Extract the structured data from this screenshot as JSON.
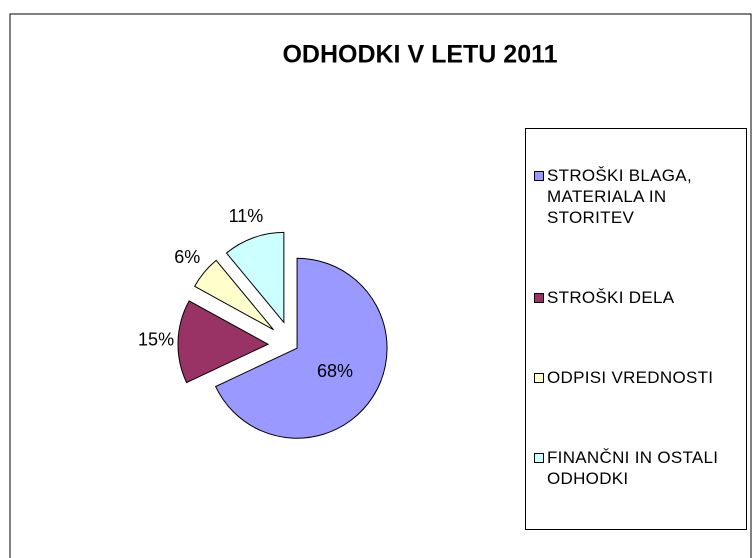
{
  "chart_data": {
    "type": "pie",
    "title": "ODHODKI  V LETU 2011",
    "categories": [
      "STROŠKI BLAGA, MATERIALA IN STORITEV",
      "STROŠKI DELA",
      "ODPISI VREDNOSTI",
      "FINANČNI IN OSTALI ODHODKI"
    ],
    "values": [
      68,
      15,
      6,
      11
    ],
    "value_labels": [
      "68%",
      "15%",
      "6%",
      "11%"
    ],
    "colors": [
      "#9999ff",
      "#993366",
      "#ffffcc",
      "#ccffff"
    ],
    "legend": "right"
  }
}
